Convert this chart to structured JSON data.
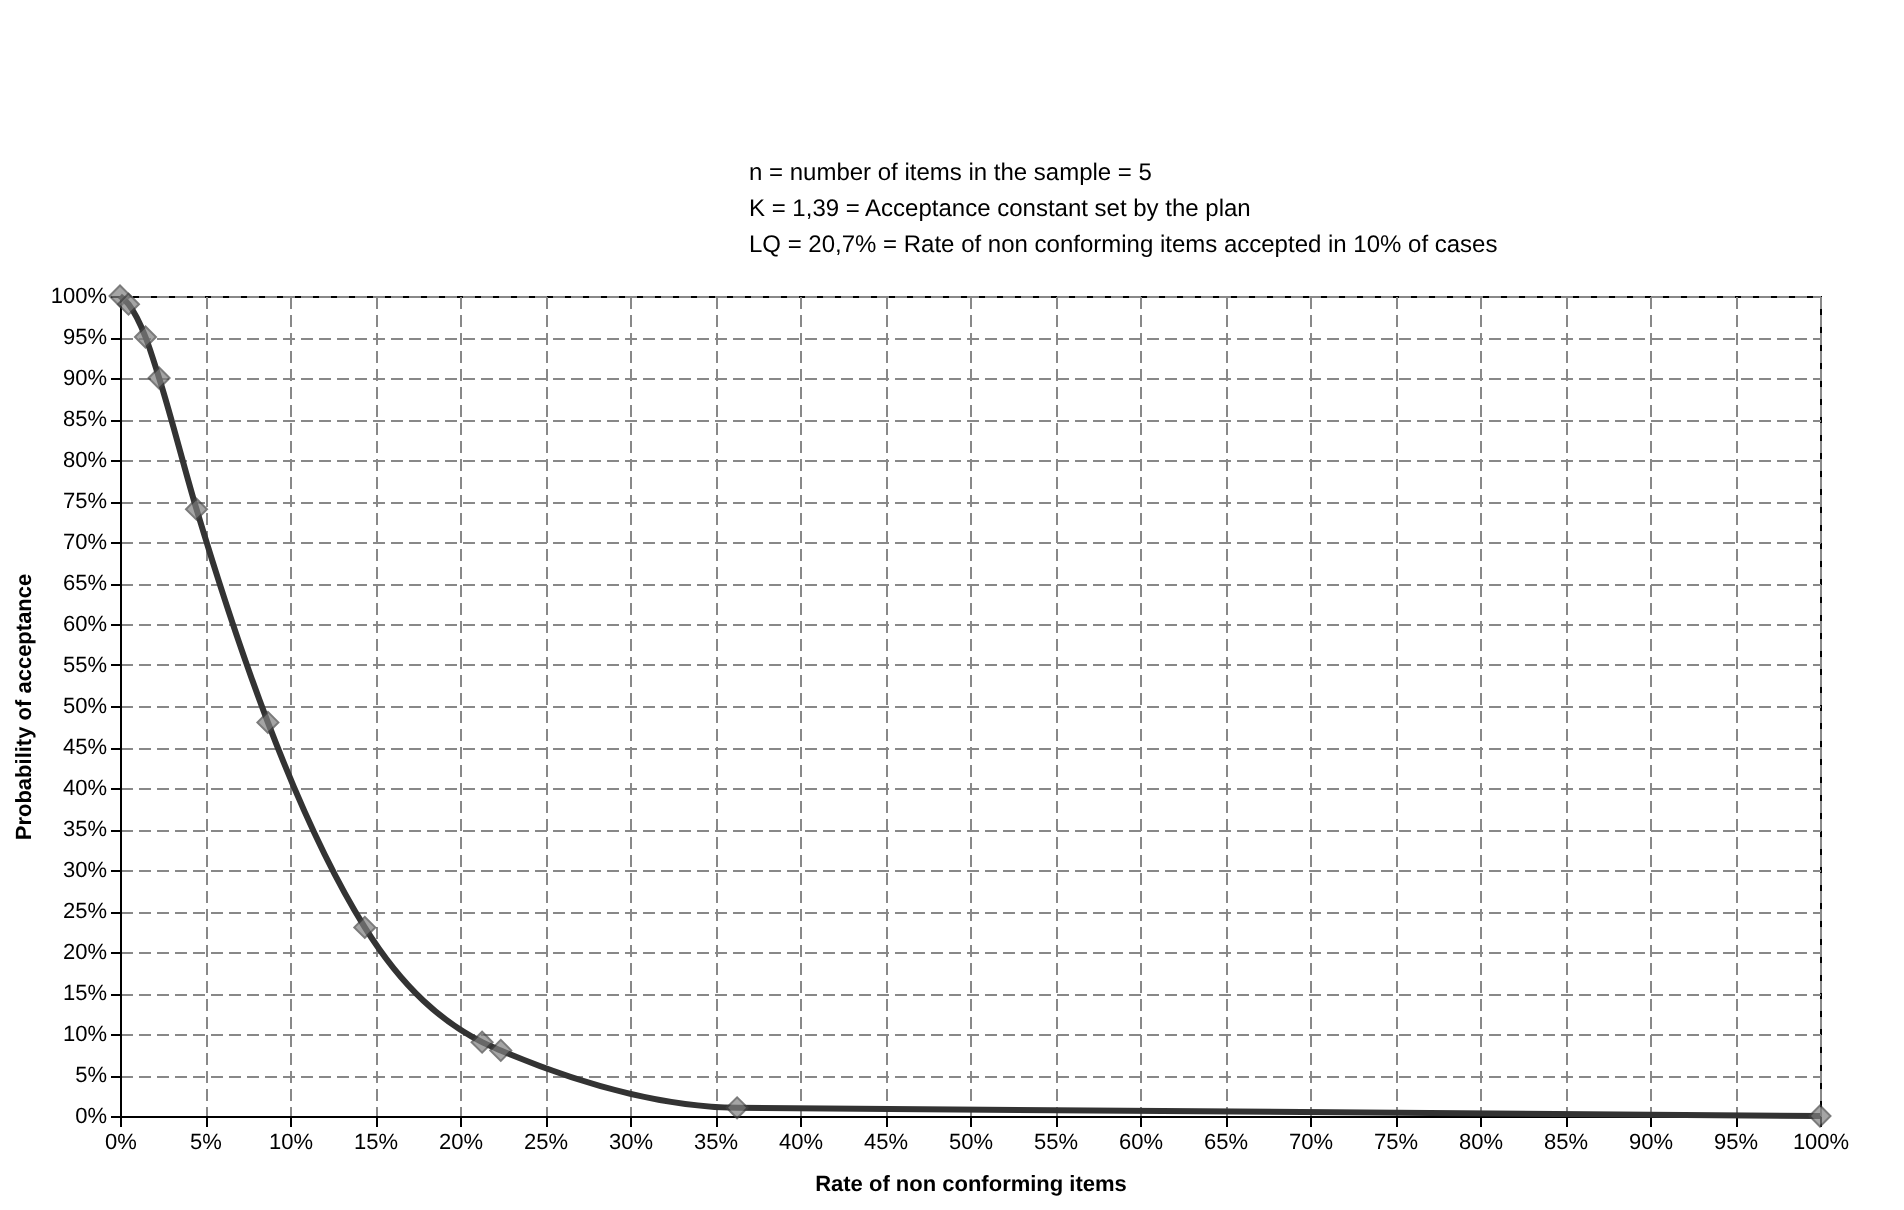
{
  "chart_data": {
    "type": "line",
    "xlabel": "Rate of non conforming items",
    "ylabel": "Probability of acceptance",
    "annotations": [
      "n = number of items in the sample = 5",
      "K = 1,39 = Acceptance constant set by the plan",
      "LQ = 20,7% = Rate of non conforming items accepted in 10% of cases"
    ],
    "x": [
      0,
      0.5,
      1.5,
      2.3,
      4.5,
      8.7,
      14.4,
      21.3,
      22.4,
      36.3,
      100
    ],
    "series": [
      {
        "color": "#7f7f7f",
        "values": [
          100,
          99,
          95,
          90,
          74,
          48,
          23,
          9,
          8,
          1,
          0
        ]
      }
    ],
    "xlim": [
      0,
      100
    ],
    "ylim": [
      0,
      100
    ],
    "xticks": [
      {
        "value": 0,
        "label": "0%"
      },
      {
        "value": 5,
        "label": "5%"
      },
      {
        "value": 10,
        "label": "10%"
      },
      {
        "value": 15,
        "label": "15%"
      },
      {
        "value": 20,
        "label": "20%"
      },
      {
        "value": 25,
        "label": "25%"
      },
      {
        "value": 30,
        "label": "30%"
      },
      {
        "value": 35,
        "label": "35%"
      },
      {
        "value": 40,
        "label": "40%"
      },
      {
        "value": 45,
        "label": "45%"
      },
      {
        "value": 50,
        "label": "50%"
      },
      {
        "value": 55,
        "label": "55%"
      },
      {
        "value": 60,
        "label": "60%"
      },
      {
        "value": 65,
        "label": "65%"
      },
      {
        "value": 70,
        "label": "70%"
      },
      {
        "value": 75,
        "label": "75%"
      },
      {
        "value": 80,
        "label": "80%"
      },
      {
        "value": 85,
        "label": "85%"
      },
      {
        "value": 90,
        "label": "90%"
      },
      {
        "value": 95,
        "label": "95%"
      },
      {
        "value": 100,
        "label": "100%"
      }
    ],
    "yticks": [
      {
        "value": 0,
        "label": "0%"
      },
      {
        "value": 5,
        "label": "5%"
      },
      {
        "value": 10,
        "label": "10%"
      },
      {
        "value": 15,
        "label": "15%"
      },
      {
        "value": 20,
        "label": "20%"
      },
      {
        "value": 25,
        "label": "25%"
      },
      {
        "value": 30,
        "label": "30%"
      },
      {
        "value": 35,
        "label": "35%"
      },
      {
        "value": 40,
        "label": "40%"
      },
      {
        "value": 45,
        "label": "45%"
      },
      {
        "value": 50,
        "label": "50%"
      },
      {
        "value": 55,
        "label": "55%"
      },
      {
        "value": 60,
        "label": "60%"
      },
      {
        "value": 65,
        "label": "65%"
      },
      {
        "value": 70,
        "label": "70%"
      },
      {
        "value": 75,
        "label": "75%"
      },
      {
        "value": 80,
        "label": "80%"
      },
      {
        "value": 85,
        "label": "85%"
      },
      {
        "value": 90,
        "label": "90%"
      },
      {
        "value": 95,
        "label": "95%"
      },
      {
        "value": 100,
        "label": "100%"
      }
    ],
    "grid": true,
    "marker": "diamond",
    "line_style": "solid"
  }
}
